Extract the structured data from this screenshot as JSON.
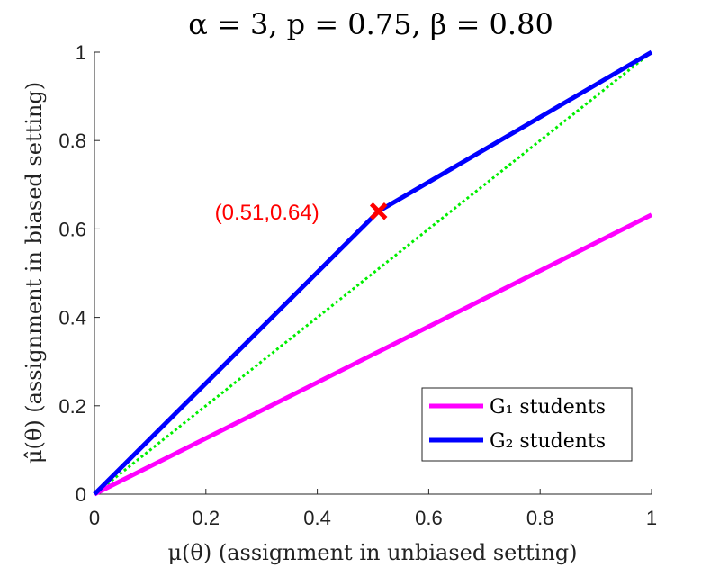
{
  "chart_data": {
    "type": "line",
    "title": "α = 3, p = 0.75, β = 0.80",
    "xlabel": "μ(θ) (assignment in unbiased setting)",
    "ylabel": "μ̂(θ) (assignment in biased setting)",
    "xlim": [
      0,
      1
    ],
    "ylim": [
      0,
      1
    ],
    "xticks": [
      "0",
      "0.2",
      "0.4",
      "0.6",
      "0.8",
      "1"
    ],
    "yticks": [
      "0",
      "0.2",
      "0.4",
      "0.6",
      "0.8",
      "1"
    ],
    "grid": false,
    "legend_position": "bottom-right",
    "series": [
      {
        "name": "G₁ students",
        "color": "#ff00ff",
        "x": [
          0,
          1
        ],
        "y": [
          0,
          0.632
        ]
      },
      {
        "name": "G₂ students",
        "color": "#0000ff",
        "x": [
          0,
          0.51,
          1
        ],
        "y": [
          0,
          0.64,
          1
        ]
      },
      {
        "name": "",
        "color": "#00ee00",
        "style": "dotted",
        "x": [
          0,
          1
        ],
        "y": [
          0,
          1
        ]
      }
    ],
    "annotations": [
      {
        "text": "(0.51,0.64)",
        "x": 0.51,
        "y": 0.64,
        "marker": "x",
        "color": "#ff0000"
      }
    ]
  }
}
